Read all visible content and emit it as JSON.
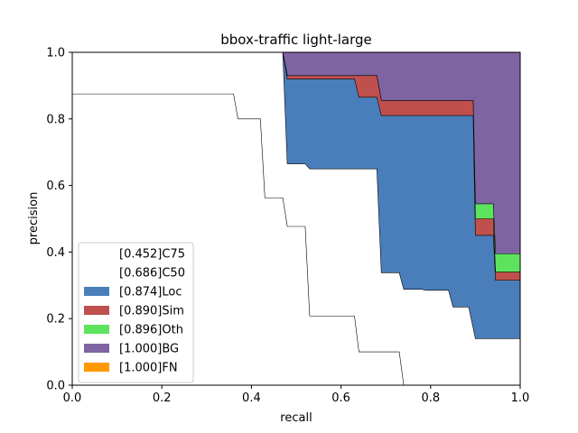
{
  "chart_data": {
    "type": "area",
    "title": "bbox-traffic light-large",
    "xlabel": "recall",
    "ylabel": "precision",
    "xlim": [
      0,
      1
    ],
    "ylim": [
      0,
      1
    ],
    "xticks": [
      "0.0",
      "0.2",
      "0.4",
      "0.6",
      "0.8",
      "1.0"
    ],
    "yticks": [
      "0.0",
      "0.2",
      "0.4",
      "0.6",
      "0.8",
      "1.0"
    ],
    "grid": false,
    "legend_position": "lower-left",
    "series": [
      {
        "name": "[1.000]FN",
        "color": "#ff9900",
        "points": [
          [
            0,
            1
          ],
          [
            1,
            1
          ]
        ]
      },
      {
        "name": "[1.000]BG",
        "color": "#7f64a2",
        "points": [
          [
            0,
            1
          ],
          [
            0.47,
            1
          ],
          [
            1,
            1
          ]
        ]
      },
      {
        "name": "[0.896]Oth",
        "color": "#5ee35e",
        "points": [
          [
            0,
            1
          ],
          [
            0.47,
            1
          ],
          [
            0.48,
            0.93
          ],
          [
            0.68,
            0.93
          ],
          [
            0.69,
            0.855
          ],
          [
            0.895,
            0.855
          ],
          [
            0.9,
            0.545
          ],
          [
            0.94,
            0.545
          ],
          [
            0.945,
            0.395
          ],
          [
            1,
            0.395
          ]
        ]
      },
      {
        "name": "[0.890]Sim",
        "color": "#c0504d",
        "points": [
          [
            0,
            1
          ],
          [
            0.47,
            1
          ],
          [
            0.48,
            0.93
          ],
          [
            0.68,
            0.93
          ],
          [
            0.69,
            0.855
          ],
          [
            0.895,
            0.855
          ],
          [
            0.9,
            0.5
          ],
          [
            0.94,
            0.5
          ],
          [
            0.945,
            0.34
          ],
          [
            1,
            0.34
          ]
        ]
      },
      {
        "name": "[0.874]Loc",
        "color": "#4a7ebb",
        "points": [
          [
            0,
            1
          ],
          [
            0.47,
            1
          ],
          [
            0.48,
            0.92
          ],
          [
            0.63,
            0.92
          ],
          [
            0.64,
            0.865
          ],
          [
            0.68,
            0.865
          ],
          [
            0.69,
            0.81
          ],
          [
            0.895,
            0.81
          ],
          [
            0.9,
            0.45
          ],
          [
            0.94,
            0.45
          ],
          [
            0.945,
            0.315
          ],
          [
            1,
            0.315
          ]
        ]
      },
      {
        "name": "[0.686]C50",
        "color": "#ffffff",
        "points": [
          [
            0,
            1
          ],
          [
            0.47,
            1
          ],
          [
            0.48,
            0.665
          ],
          [
            0.52,
            0.665
          ],
          [
            0.53,
            0.65
          ],
          [
            0.68,
            0.65
          ],
          [
            0.69,
            0.338
          ],
          [
            0.73,
            0.338
          ],
          [
            0.74,
            0.288
          ],
          [
            0.78,
            0.288
          ],
          [
            0.79,
            0.285
          ],
          [
            0.84,
            0.285
          ],
          [
            0.85,
            0.235
          ],
          [
            0.885,
            0.235
          ],
          [
            0.9,
            0.14
          ],
          [
            1,
            0.14
          ]
        ]
      },
      {
        "name": "[0.452]C75",
        "color": "#ffffff",
        "points": [
          [
            0,
            0.875
          ],
          [
            0.36,
            0.875
          ],
          [
            0.37,
            0.8
          ],
          [
            0.42,
            0.8
          ],
          [
            0.43,
            0.563
          ],
          [
            0.47,
            0.563
          ],
          [
            0.48,
            0.477
          ],
          [
            0.52,
            0.477
          ],
          [
            0.53,
            0.208
          ],
          [
            0.63,
            0.208
          ],
          [
            0.64,
            0.1
          ],
          [
            0.73,
            0.1
          ],
          [
            0.74,
            0
          ]
        ]
      }
    ]
  }
}
